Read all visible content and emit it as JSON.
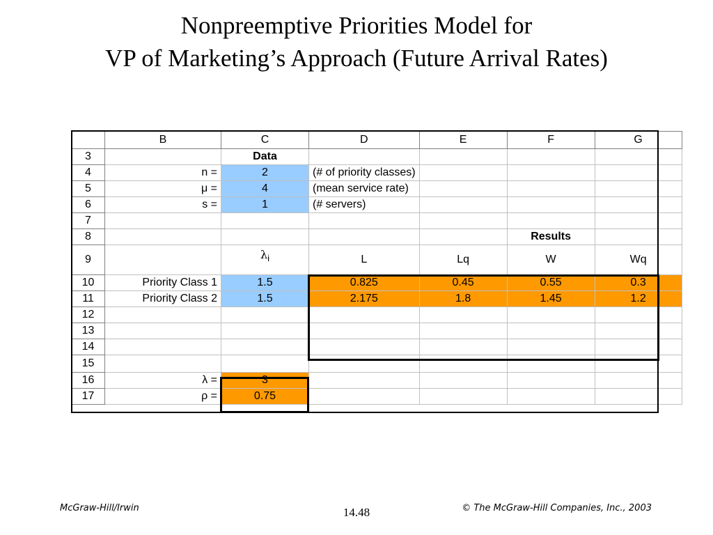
{
  "title": {
    "line1": "Nonpreemptive Priorities Model for",
    "line2": "VP of Marketing’s Approach (Future Arrival Rates)"
  },
  "sheet": {
    "columns": [
      "B",
      "C",
      "D",
      "E",
      "F",
      "G"
    ],
    "rows": {
      "r3": {
        "num": "3",
        "C": "Data"
      },
      "r4": {
        "num": "4",
        "B": "n =",
        "C": "2",
        "D": "(# of priority classes)"
      },
      "r5": {
        "num": "5",
        "B": "μ =",
        "C": "4",
        "D": "(mean service rate)"
      },
      "r6": {
        "num": "6",
        "B": "s =",
        "C": "1",
        "D": "(# servers)"
      },
      "r7": {
        "num": "7"
      },
      "r8": {
        "num": "8",
        "F": "Results"
      },
      "r9": {
        "num": "9",
        "C_sym": "λ",
        "C_sub": "i",
        "D": "L",
        "E": "Lq",
        "F": "W",
        "G": "Wq"
      },
      "r10": {
        "num": "10",
        "B": "Priority Class 1",
        "C": "1.5",
        "D": "0.825",
        "E": "0.45",
        "F": "0.55",
        "G": "0.3"
      },
      "r11": {
        "num": "11",
        "B": "Priority Class 2",
        "C": "1.5",
        "D": "2.175",
        "E": "1.8",
        "F": "1.45",
        "G": "1.2"
      },
      "r12": {
        "num": "12"
      },
      "r13": {
        "num": "13"
      },
      "r14": {
        "num": "14"
      },
      "r15": {
        "num": "15"
      },
      "r16": {
        "num": "16",
        "B": "λ =",
        "C": "3"
      },
      "r17": {
        "num": "17",
        "B": "ρ =",
        "C": "0.75"
      }
    }
  },
  "footer": {
    "left": "McGraw-Hill/Irwin",
    "page": "14.48",
    "right": "© The McGraw-Hill Companies, Inc., 2003"
  },
  "colors": {
    "input": "#99ccff",
    "output": "#ff9900"
  }
}
